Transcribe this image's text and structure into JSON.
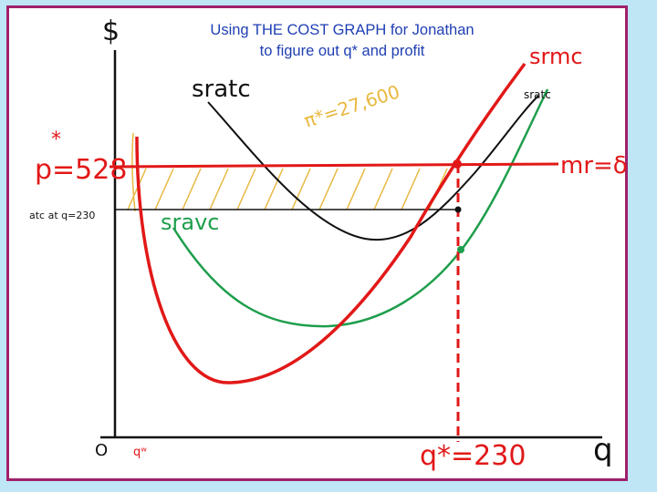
{
  "slide": {
    "title_line1": "Using THE COST GRAPH for Jonathan",
    "title_line2": "to figure out q* and profit"
  },
  "axes": {
    "y_label": "$",
    "x_label": "q",
    "origin_label": "O",
    "x_marker_label": "qʷ",
    "qstar_label": "q*=230"
  },
  "labels": {
    "srmc_top": "srmc",
    "srtc_small": "sratc",
    "srtc_left": "sratc",
    "sravc": "sravc",
    "price": "p=528",
    "price_star": "*",
    "mr": "mr=δ",
    "atc_at_q": "atc at q=230",
    "profit": "π*=27,600"
  },
  "colors": {
    "red": "#e21818",
    "black": "#111111",
    "green": "#1e9e4c",
    "orange_hatch": "#e8b840",
    "title_blue": "#1f3fb3",
    "frame": "#a0206a",
    "background": "#bfe6f5"
  }
}
